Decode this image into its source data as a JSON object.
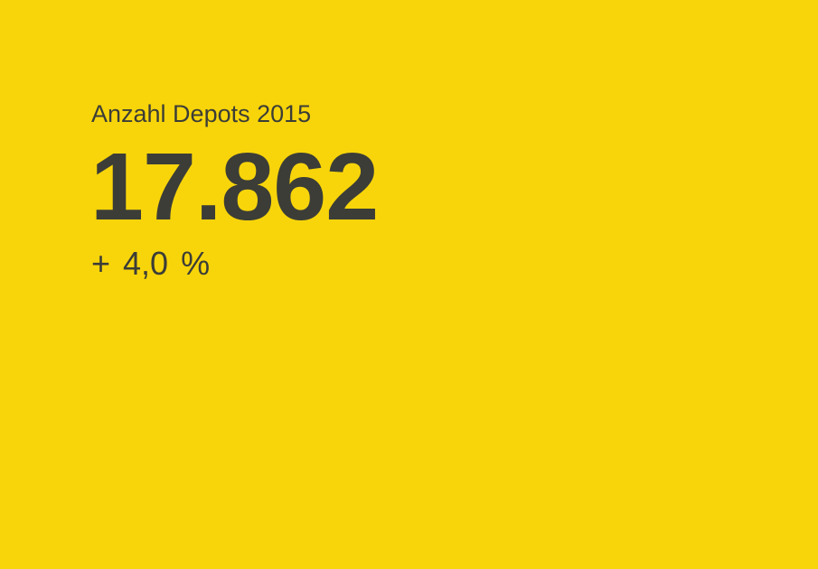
{
  "kpi": {
    "title": "Anzahl Depots 2015",
    "value": "17.862",
    "change": "+ 4,0 %"
  },
  "colors": {
    "background": "#F8D50A",
    "text": "#3c3d37"
  }
}
